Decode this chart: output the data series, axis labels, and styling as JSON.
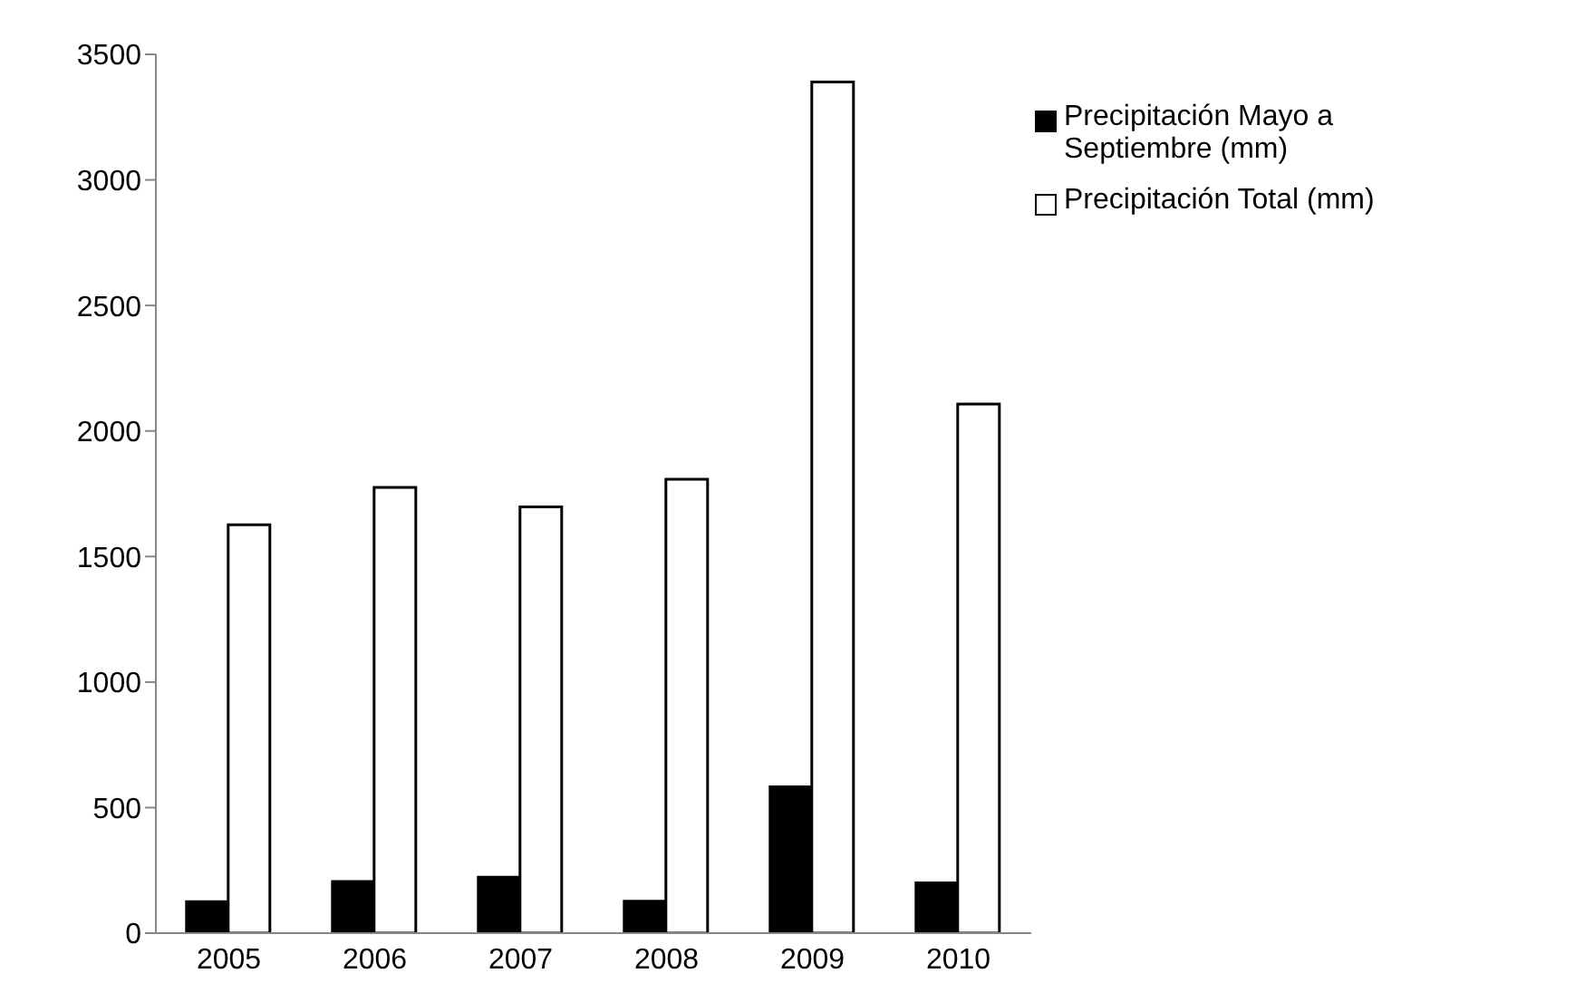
{
  "chart_data": {
    "type": "bar",
    "categories": [
      "2005",
      "2006",
      "2007",
      "2008",
      "2009",
      "2010"
    ],
    "series": [
      {
        "name": "Precipitación Mayo a Septiembre (mm)",
        "color": "#000000",
        "values": [
          125,
          206,
          223,
          127,
          583,
          200
        ]
      },
      {
        "name": "Precipitación Total (mm)",
        "color": "#ffffff",
        "values": [
          1626,
          1775,
          1698,
          1808,
          3390,
          2107
        ]
      }
    ],
    "ylim": [
      0,
      3500
    ],
    "yticks": [
      0,
      500,
      1000,
      1500,
      2000,
      2500,
      3000,
      3500
    ],
    "grid": false,
    "legend": "right"
  }
}
